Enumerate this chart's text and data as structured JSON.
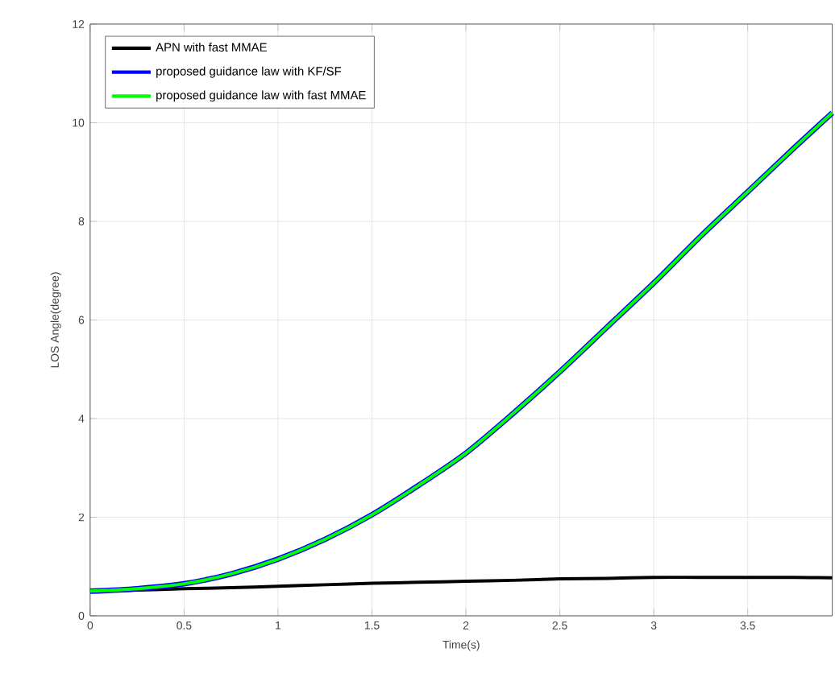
{
  "chart_data": {
    "type": "line",
    "xlabel": "Time(s)",
    "ylabel": "LOS Angle(degree)",
    "xlim": [
      0,
      3.95
    ],
    "ylim": [
      0,
      12
    ],
    "xticks": [
      0,
      0.5,
      1,
      1.5,
      2,
      2.5,
      3,
      3.5
    ],
    "yticks": [
      0,
      2,
      4,
      6,
      8,
      10,
      12
    ],
    "grid": true,
    "legend": "top left",
    "line_style": "solid",
    "marker": "none",
    "series": [
      {
        "name": "APN with fast MMAE",
        "color": "#000000",
        "x": [
          0,
          0.25,
          0.5,
          0.75,
          1,
          1.25,
          1.5,
          1.75,
          2,
          2.25,
          2.5,
          2.75,
          3,
          3.25,
          3.5,
          3.75,
          3.95
        ],
        "values": [
          0.5,
          0.52,
          0.55,
          0.57,
          0.6,
          0.63,
          0.66,
          0.68,
          0.7,
          0.72,
          0.75,
          0.76,
          0.78,
          0.78,
          0.78,
          0.78,
          0.77
        ]
      },
      {
        "name": "proposed guidance law with KF/SF",
        "color": "#0000ff",
        "x": [
          0,
          0.25,
          0.5,
          0.75,
          1,
          1.25,
          1.5,
          1.75,
          2,
          2.25,
          2.5,
          2.75,
          3,
          3.25,
          3.5,
          3.75,
          3.95
        ],
        "values": [
          0.5,
          0.55,
          0.65,
          0.85,
          1.15,
          1.55,
          2.05,
          2.65,
          3.3,
          4.1,
          4.95,
          5.85,
          6.75,
          7.7,
          8.6,
          9.5,
          10.2
        ]
      },
      {
        "name": "proposed guidance law with fast MMAE",
        "color": "#00ff00",
        "x": [
          0,
          0.25,
          0.5,
          0.75,
          1,
          1.25,
          1.5,
          1.75,
          2,
          2.25,
          2.5,
          2.75,
          3,
          3.25,
          3.5,
          3.75,
          3.95
        ],
        "values": [
          0.5,
          0.55,
          0.65,
          0.85,
          1.15,
          1.55,
          2.05,
          2.65,
          3.3,
          4.1,
          4.95,
          5.85,
          6.75,
          7.7,
          8.6,
          9.5,
          10.2
        ]
      }
    ]
  }
}
